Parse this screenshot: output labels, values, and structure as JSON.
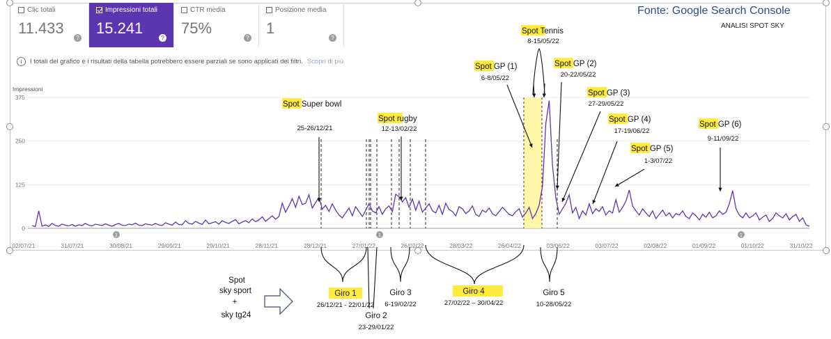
{
  "header": {
    "source": "Fonte: Google Search Console",
    "subtitle": "ANALISI SPOT SKY"
  },
  "metrics": [
    {
      "label": "Clic totali",
      "value": "11.433",
      "active": false
    },
    {
      "label": "Impressioni totali",
      "value": "15.241",
      "active": true
    },
    {
      "label": "CTR media",
      "value": "75%",
      "active": false
    },
    {
      "label": "Posizione media",
      "value": "1",
      "active": false
    }
  ],
  "help_symbol": "?",
  "info_text": "I totali del grafico e i risultati della tabella potrebbero essere parziali se sono applicati dei filtri.",
  "info_link": "Scopri di più",
  "colors": {
    "line": "#5e35b1",
    "active_card": "#5e35b1",
    "highlight": "#ffeb3b",
    "band": "#fff176"
  },
  "chart_data": {
    "type": "line",
    "ylabel": "Impressioni",
    "y_ticks": [
      0,
      125,
      250,
      375
    ],
    "ylim": [
      0,
      375
    ],
    "x_tick_labels": [
      "02/07/21",
      "31/07/21",
      "30/08/21",
      "29/09/21",
      "29/10/21",
      "28/11/21",
      "28/12/21",
      "27/01/22",
      "26/02/22",
      "28/03/22",
      "26/04/22",
      "03/06/22",
      "03/07/22",
      "02/08/22",
      "01/09/22",
      "01/10/22",
      "31/10/22"
    ],
    "series": [
      {
        "values": [
          8,
          5,
          50,
          6,
          10,
          5,
          14,
          8,
          6,
          12,
          9,
          7,
          11,
          6,
          10,
          8,
          14,
          9,
          7,
          12,
          10,
          8,
          13,
          9,
          6,
          11,
          14,
          9,
          8,
          12,
          10,
          15,
          9,
          8,
          13,
          11,
          9,
          14,
          10,
          8,
          16,
          12,
          9,
          18,
          11,
          10,
          22,
          14,
          12,
          20,
          15,
          11,
          24,
          13,
          16,
          19,
          12,
          22,
          17,
          14,
          20,
          25,
          13,
          18,
          22,
          16,
          27,
          19,
          24,
          33,
          20,
          28,
          36,
          26,
          34,
          72,
          46,
          64,
          85,
          60,
          92,
          68,
          72,
          96,
          58,
          74,
          88,
          55,
          66,
          48,
          70,
          52,
          38,
          30,
          44,
          58,
          36,
          62,
          48,
          34,
          52,
          70,
          50,
          44,
          62,
          40,
          56,
          64,
          48,
          98,
          90,
          76,
          88,
          60,
          84,
          52,
          78,
          46,
          58,
          70,
          50,
          44,
          66,
          40,
          72,
          54,
          48,
          36,
          62,
          56,
          42,
          50,
          64,
          40,
          34,
          52,
          46,
          58,
          42,
          36,
          48,
          60,
          50,
          40,
          36,
          48,
          56,
          32,
          44,
          60,
          28,
          42,
          66,
          120,
          300,
          366,
          180,
          86,
          40,
          56,
          72,
          96,
          44,
          60,
          28,
          50,
          38,
          70,
          42,
          56,
          48,
          62,
          38,
          50,
          44,
          82,
          46,
          60,
          78,
          110,
          64,
          50,
          38,
          56,
          44,
          34,
          50,
          28,
          40,
          52,
          36,
          44,
          30,
          42,
          38,
          50,
          34,
          28,
          44,
          36,
          24,
          40,
          32,
          46,
          30,
          36,
          50,
          40,
          46,
          70,
          108,
          56,
          38,
          30,
          44,
          30,
          36,
          44,
          24,
          32,
          38,
          20,
          28,
          44,
          36,
          30,
          42,
          24,
          34,
          40,
          20,
          30,
          10,
          6
        ]
      }
    ],
    "annotations": [
      {
        "title": "Spot Super bowl",
        "date": "25-26/12/21"
      },
      {
        "title": "Spot rugby",
        "date": "12-13/02/22"
      },
      {
        "title": "Spot Tennis",
        "date": "8-15/05/22"
      },
      {
        "title": "Spot GP (1)",
        "date": "6-8/05/22"
      },
      {
        "title": "Spot GP (2)",
        "date": "20-22/05/22"
      },
      {
        "title": "Spot GP (3)",
        "date": "27-29/05/22"
      },
      {
        "title": "Spot GP (4)",
        "date": "17-19/06/22"
      },
      {
        "title": "Spot GP (5)",
        "date": "1-3/07/22"
      },
      {
        "title": "Spot GP (6)",
        "date": "9-11/09/22"
      }
    ],
    "giri": [
      {
        "label": "Giro 1",
        "dates": "26/12/21 - 22/01/22"
      },
      {
        "label": "Giro 2",
        "dates": "23-29/01/22"
      },
      {
        "label": "Giro 3",
        "dates": "6-19/02/22"
      },
      {
        "label": "Giro 4",
        "dates": "27/02/22 – 30/04/22"
      },
      {
        "label": "Giro 5",
        "dates": "10-28/05/22"
      }
    ],
    "marker_badge": "1",
    "legend_text": [
      "Spot",
      "sky sport",
      "+",
      "sky tg24"
    ]
  }
}
